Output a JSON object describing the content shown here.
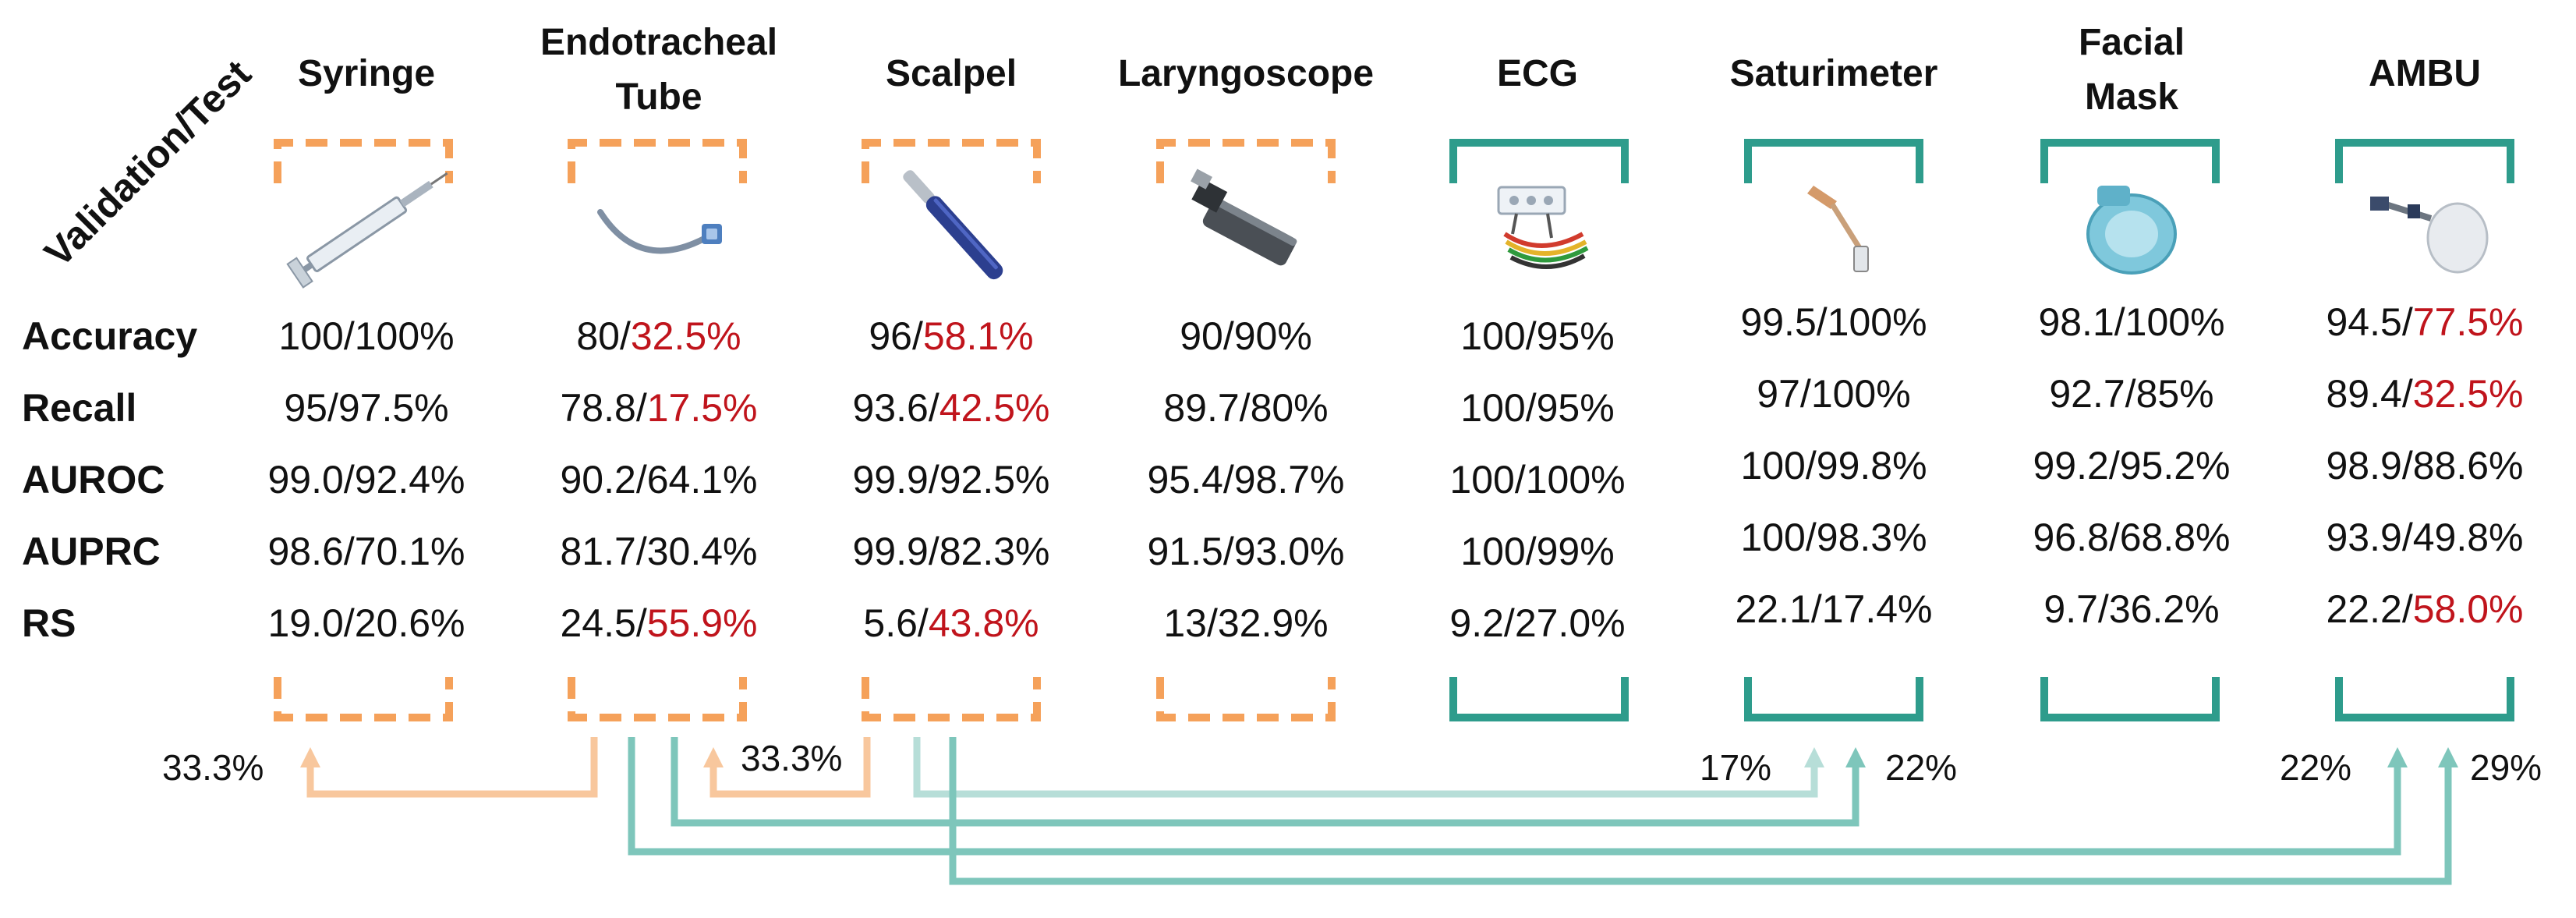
{
  "axis_label": "Validation/Test",
  "colors": {
    "orange": "#f5a15a",
    "orange_light": "#f8c79d",
    "teal": "#2e9c8c",
    "teal_mid": "#7ec6bb",
    "teal_light": "#b7ded8",
    "red": "#c0141c",
    "text": "#111111"
  },
  "row_labels": [
    "Accuracy",
    "Recall",
    "AUROC",
    "AUPRC",
    "RS"
  ],
  "columns": [
    {
      "key": "syringe",
      "title": [
        "Syringe"
      ],
      "style": "dashed",
      "values": [
        [
          "100",
          "100%"
        ],
        [
          "95",
          "97.5%"
        ],
        [
          "99.0",
          "92.4%"
        ],
        [
          "98.6",
          "70.1%"
        ],
        [
          "19.0",
          "20.6%"
        ]
      ],
      "highlight": [
        false,
        false,
        false,
        false,
        false
      ]
    },
    {
      "key": "endotracheal-tube",
      "title": [
        "Endotracheal",
        "Tube"
      ],
      "style": "dashed",
      "values": [
        [
          "80",
          "32.5%"
        ],
        [
          "78.8",
          "17.5%"
        ],
        [
          "90.2",
          "64.1%"
        ],
        [
          "81.7",
          "30.4%"
        ],
        [
          "24.5",
          "55.9%"
        ]
      ],
      "highlight": [
        true,
        true,
        false,
        false,
        true
      ]
    },
    {
      "key": "scalpel",
      "title": [
        "Scalpel"
      ],
      "style": "dashed",
      "values": [
        [
          "96",
          "58.1%"
        ],
        [
          "93.6",
          "42.5%"
        ],
        [
          "99.9",
          "92.5%"
        ],
        [
          "99.9",
          "82.3%"
        ],
        [
          "5.6",
          "43.8%"
        ]
      ],
      "highlight": [
        true,
        true,
        false,
        false,
        true
      ]
    },
    {
      "key": "laryngoscope",
      "title": [
        "Laryngoscope"
      ],
      "style": "dashed",
      "values": [
        [
          "90",
          "90%"
        ],
        [
          "89.7",
          "80%"
        ],
        [
          "95.4",
          "98.7%"
        ],
        [
          "91.5",
          "93.0%"
        ],
        [
          "13",
          "32.9%"
        ]
      ],
      "highlight": [
        false,
        false,
        false,
        false,
        false
      ]
    },
    {
      "key": "ecg",
      "title": [
        "ECG"
      ],
      "style": "solid",
      "values": [
        [
          "100",
          "95%"
        ],
        [
          "100",
          "95%"
        ],
        [
          "100",
          "100%"
        ],
        [
          "100",
          "99%"
        ],
        [
          "9.2",
          "27.0%"
        ]
      ],
      "highlight": [
        false,
        false,
        false,
        false,
        false
      ]
    },
    {
      "key": "saturimeter",
      "title": [
        "Saturimeter"
      ],
      "style": "solid",
      "values": [
        [
          "99.5",
          "100%"
        ],
        [
          "97",
          "100%"
        ],
        [
          "100",
          "99.8%"
        ],
        [
          "100",
          "98.3%"
        ],
        [
          "22.1",
          "17.4%"
        ]
      ],
      "highlight": [
        false,
        false,
        false,
        false,
        false
      ]
    },
    {
      "key": "facial-mask",
      "title": [
        "Facial",
        "Mask"
      ],
      "style": "solid",
      "values": [
        [
          "98.1",
          "100%"
        ],
        [
          "92.7",
          "85%"
        ],
        [
          "99.2",
          "95.2%"
        ],
        [
          "96.8",
          "68.8%"
        ],
        [
          "9.7",
          "36.2%"
        ]
      ],
      "highlight": [
        false,
        false,
        false,
        false,
        false
      ]
    },
    {
      "key": "ambu",
      "title": [
        "AMBU"
      ],
      "style": "solid",
      "values": [
        [
          "94.5",
          "77.5%"
        ],
        [
          "89.4",
          "32.5%"
        ],
        [
          "98.9",
          "88.6%"
        ],
        [
          "93.9",
          "49.8%"
        ],
        [
          "22.2",
          "58.0%"
        ]
      ],
      "highlight": [
        true,
        true,
        false,
        false,
        true
      ]
    }
  ],
  "flows": [
    {
      "from": "endotracheal-tube",
      "to": "syringe",
      "label": "33.3%",
      "color": "orange_light"
    },
    {
      "from": "scalpel",
      "to": "endotracheal-tube",
      "label": "33.3%",
      "color": "orange_light"
    },
    {
      "from": "scalpel",
      "to": "saturimeter",
      "label": "17%",
      "color": "teal_light"
    },
    {
      "from": "endotracheal-tube",
      "to": "saturimeter",
      "label": "22%",
      "color": "teal_mid"
    },
    {
      "from": "endotracheal-tube",
      "to": "ambu",
      "label": "22%",
      "color": "teal_mid"
    },
    {
      "from": "scalpel",
      "to": "ambu",
      "label": "29%",
      "color": "teal_mid"
    }
  ]
}
